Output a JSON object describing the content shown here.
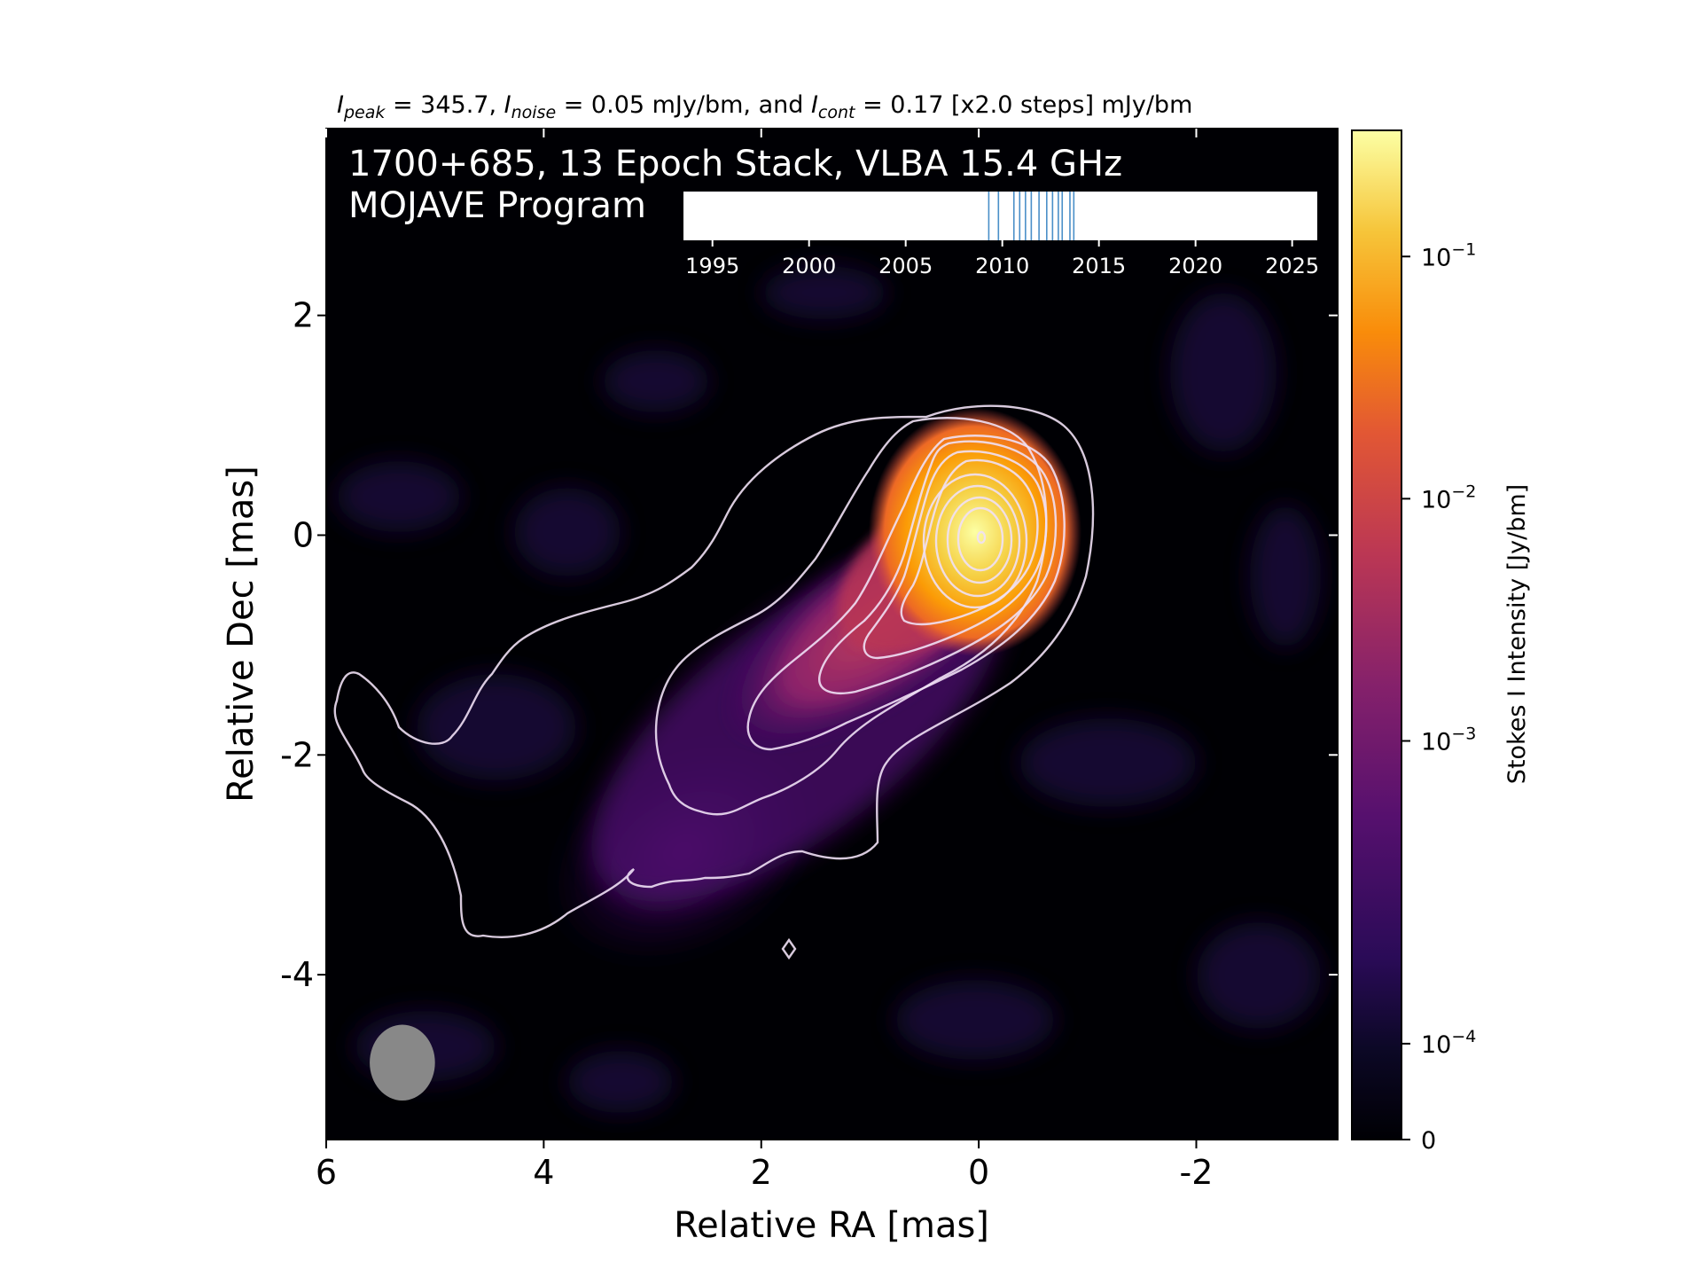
{
  "header": {
    "ipeak_sym": "I",
    "ipeak_sub": "peak",
    "ipeak_val": " = 345.7, ",
    "inoise_sym": "I",
    "inoise_sub": "noise",
    "inoise_val": " = 0.05 mJy/bm, and ",
    "icont_sym": "I",
    "icont_sub": "cont",
    "icont_val": " = 0.17 [x2.0 steps] mJy/bm"
  },
  "overlay": {
    "line1": "1700+685, 13 Epoch Stack, VLBA 15.4 GHz",
    "line2": "MOJAVE Program"
  },
  "colors": {
    "map_background": "#000004",
    "contour": "#f0e0f5",
    "beam": "#888888",
    "epoch_lines": "#4a8fc8",
    "text_on_map": "#ffffff"
  },
  "chart_data": [
    {
      "type": "heatmap",
      "name": "stacked-image",
      "xlabel": "Relative RA [mas]",
      "ylabel": "Relative Dec [mas]",
      "xlim": [
        6,
        -3.3
      ],
      "ylim": [
        -5.5,
        3.7
      ],
      "xticks": [
        6,
        4,
        2,
        0,
        -2
      ],
      "xtick_labels": [
        "6",
        "4",
        "2",
        "0",
        "-2"
      ],
      "yticks": [
        2,
        0,
        -2,
        -4
      ],
      "ytick_labels": [
        "2",
        "0",
        "-2",
        "-4"
      ],
      "colormap": "inferno",
      "peak_position_mas": [
        0,
        0
      ],
      "peak_jy_per_beam": 0.3457,
      "contour_base_jy_per_beam": 0.00017,
      "contour_step_factor": 2.0,
      "beam_center_mas": [
        5.3,
        -4.8
      ],
      "beam_major_mas": 0.69,
      "beam_minor_mas": 0.6,
      "beam_pa_deg": 0
    },
    {
      "type": "colorbar",
      "label": "Stokes I Intensity [Jy/bm]",
      "scale": "log-linear",
      "ticks": [
        0,
        0.0001,
        0.001,
        0.01,
        0.1
      ],
      "tick_labels": [
        {
          "base": "0",
          "exp": ""
        },
        {
          "base": "10",
          "exp": "−4"
        },
        {
          "base": "10",
          "exp": "−3"
        },
        {
          "base": "10",
          "exp": "−2"
        },
        {
          "base": "10",
          "exp": "−1"
        }
      ],
      "max": 0.3457
    },
    {
      "type": "timeline",
      "name": "epochs",
      "xlim": [
        1993.5,
        2026.3
      ],
      "ticks": [
        1995,
        2000,
        2005,
        2010,
        2015,
        2020,
        2025
      ],
      "tick_labels": [
        "1995",
        "2000",
        "2005",
        "2010",
        "2015",
        "2020",
        "2025"
      ],
      "epochs": [
        2009.3,
        2009.8,
        2010.6,
        2010.9,
        2011.2,
        2011.5,
        2011.9,
        2012.3,
        2012.6,
        2012.9,
        2013.1,
        2013.5,
        2013.7
      ]
    }
  ]
}
